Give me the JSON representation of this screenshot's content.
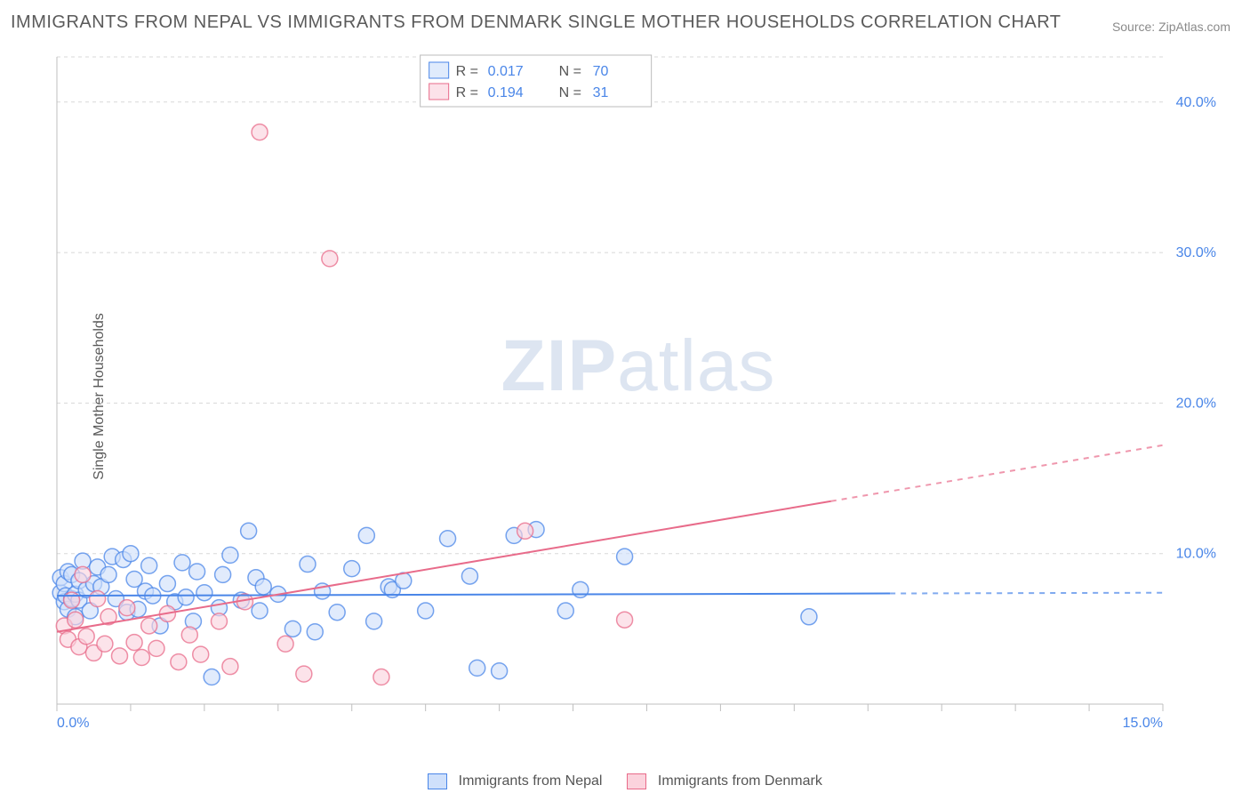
{
  "title": "IMMIGRANTS FROM NEPAL VS IMMIGRANTS FROM DENMARK SINGLE MOTHER HOUSEHOLDS CORRELATION CHART",
  "source": "Source: ZipAtlas.com",
  "ylabel": "Single Mother Households",
  "watermark_zip": "ZIP",
  "watermark_atlas": "atlas",
  "chart": {
    "type": "scatter",
    "xlim": [
      0,
      15
    ],
    "ylim": [
      0,
      43
    ],
    "xtick_labels": [
      "0.0%",
      "15.0%"
    ],
    "ytick_values": [
      10,
      20,
      30,
      40
    ],
    "ytick_labels": [
      "10.0%",
      "20.0%",
      "30.0%",
      "40.0%"
    ],
    "grid_color": "#d8d8d8",
    "axis_color": "#bfbfbf",
    "tick_color": "#bfbfbf",
    "background_color": "#ffffff",
    "marker_radius": 9,
    "marker_stroke_width": 1.5,
    "marker_fill_opacity": 0.28,
    "line_width": 2,
    "series": [
      {
        "name": "Immigrants from Nepal",
        "key": "nepal",
        "color_stroke": "#4a86e8",
        "color_fill": "#cfe0fb",
        "r": "0.017",
        "n": "70",
        "trend": {
          "x1": 0,
          "y1": 7.2,
          "x2": 15,
          "y2": 7.4,
          "solid_until_x": 11.3
        },
        "points": [
          [
            0.05,
            7.4
          ],
          [
            0.05,
            8.4
          ],
          [
            0.1,
            6.8
          ],
          [
            0.1,
            8.0
          ],
          [
            0.12,
            7.2
          ],
          [
            0.15,
            8.8
          ],
          [
            0.15,
            6.3
          ],
          [
            0.2,
            8.6
          ],
          [
            0.2,
            7.0
          ],
          [
            0.25,
            7.3
          ],
          [
            0.25,
            5.8
          ],
          [
            0.3,
            8.2
          ],
          [
            0.3,
            6.9
          ],
          [
            0.35,
            9.5
          ],
          [
            0.4,
            7.6
          ],
          [
            0.45,
            6.2
          ],
          [
            0.5,
            8.0
          ],
          [
            0.55,
            9.1
          ],
          [
            0.6,
            7.8
          ],
          [
            0.7,
            8.6
          ],
          [
            0.75,
            9.8
          ],
          [
            0.8,
            7.0
          ],
          [
            0.9,
            9.6
          ],
          [
            0.95,
            6.1
          ],
          [
            1.0,
            10.0
          ],
          [
            1.05,
            8.3
          ],
          [
            1.1,
            6.3
          ],
          [
            1.2,
            7.5
          ],
          [
            1.25,
            9.2
          ],
          [
            1.3,
            7.2
          ],
          [
            1.4,
            5.2
          ],
          [
            1.5,
            8.0
          ],
          [
            1.6,
            6.8
          ],
          [
            1.7,
            9.4
          ],
          [
            1.75,
            7.1
          ],
          [
            1.85,
            5.5
          ],
          [
            1.9,
            8.8
          ],
          [
            2.0,
            7.4
          ],
          [
            2.1,
            1.8
          ],
          [
            2.2,
            6.4
          ],
          [
            2.25,
            8.6
          ],
          [
            2.35,
            9.9
          ],
          [
            2.5,
            6.9
          ],
          [
            2.6,
            11.5
          ],
          [
            2.7,
            8.4
          ],
          [
            2.75,
            6.2
          ],
          [
            2.8,
            7.8
          ],
          [
            3.0,
            7.3
          ],
          [
            3.2,
            5.0
          ],
          [
            3.4,
            9.3
          ],
          [
            3.5,
            4.8
          ],
          [
            3.6,
            7.5
          ],
          [
            3.8,
            6.1
          ],
          [
            4.0,
            9.0
          ],
          [
            4.2,
            11.2
          ],
          [
            4.3,
            5.5
          ],
          [
            4.5,
            7.8
          ],
          [
            4.55,
            7.6
          ],
          [
            4.7,
            8.2
          ],
          [
            5.0,
            6.2
          ],
          [
            5.3,
            11.0
          ],
          [
            5.6,
            8.5
          ],
          [
            5.7,
            2.4
          ],
          [
            6.0,
            2.2
          ],
          [
            6.2,
            11.2
          ],
          [
            6.5,
            11.6
          ],
          [
            6.9,
            6.2
          ],
          [
            7.1,
            7.6
          ],
          [
            7.7,
            9.8
          ],
          [
            10.2,
            5.8
          ]
        ]
      },
      {
        "name": "Immigrants from Denmark",
        "key": "denmark",
        "color_stroke": "#e86b8a",
        "color_fill": "#fbd3dd",
        "r": "0.194",
        "n": "31",
        "trend": {
          "x1": 0,
          "y1": 4.8,
          "x2": 15,
          "y2": 17.2,
          "solid_until_x": 10.5
        },
        "points": [
          [
            0.1,
            5.2
          ],
          [
            0.15,
            4.3
          ],
          [
            0.2,
            6.9
          ],
          [
            0.25,
            5.6
          ],
          [
            0.3,
            3.8
          ],
          [
            0.35,
            8.6
          ],
          [
            0.4,
            4.5
          ],
          [
            0.5,
            3.4
          ],
          [
            0.55,
            7.0
          ],
          [
            0.65,
            4.0
          ],
          [
            0.7,
            5.8
          ],
          [
            0.85,
            3.2
          ],
          [
            0.95,
            6.4
          ],
          [
            1.05,
            4.1
          ],
          [
            1.15,
            3.1
          ],
          [
            1.25,
            5.2
          ],
          [
            1.35,
            3.7
          ],
          [
            1.5,
            6.0
          ],
          [
            1.65,
            2.8
          ],
          [
            1.8,
            4.6
          ],
          [
            1.95,
            3.3
          ],
          [
            2.2,
            5.5
          ],
          [
            2.35,
            2.5
          ],
          [
            2.55,
            6.8
          ],
          [
            2.75,
            38.0
          ],
          [
            3.1,
            4.0
          ],
          [
            3.35,
            2.0
          ],
          [
            3.7,
            29.6
          ],
          [
            4.4,
            1.8
          ],
          [
            6.35,
            11.5
          ],
          [
            7.7,
            5.6
          ]
        ]
      }
    ]
  },
  "legend_top": {
    "labels_r": "R =",
    "labels_n": "N ="
  },
  "legend_bottom": {
    "nepal": "Immigrants from Nepal",
    "denmark": "Immigrants from Denmark"
  }
}
